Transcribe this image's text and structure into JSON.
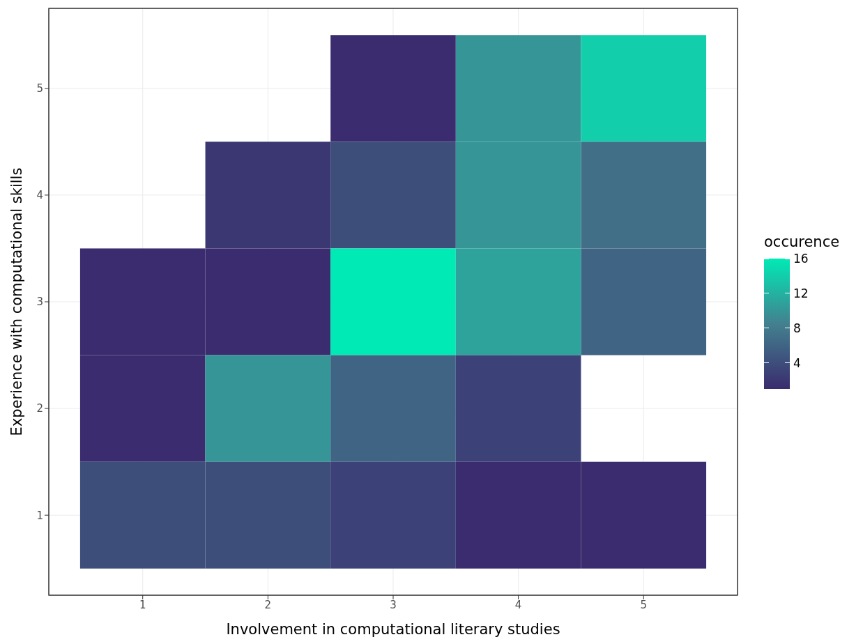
{
  "chart_data": {
    "type": "heatmap",
    "xlabel": "Involvement in computational literary studies",
    "ylabel": "Experience with computational skills",
    "clabel": "occurence",
    "categories": [
      "1",
      "2",
      "3",
      "4",
      "5"
    ],
    "y_categories": [
      "5",
      "4",
      "3",
      "2",
      "1"
    ],
    "cells": [
      [
        null,
        null,
        1,
        10,
        14
      ],
      [
        null,
        2,
        4,
        10,
        7
      ],
      [
        1,
        1,
        16,
        11,
        6
      ],
      [
        1,
        10,
        6,
        3,
        null
      ],
      [
        4,
        4,
        3,
        1,
        1
      ]
    ],
    "colors": [
      "#3a2c6e",
      "#43808f",
      "#00eab5"
    ],
    "clim": [
      1,
      16
    ],
    "cticks": [
      4,
      8,
      12,
      16
    ],
    "grid": true
  }
}
